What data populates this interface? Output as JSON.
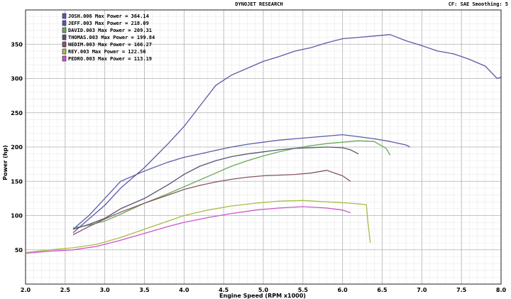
{
  "header": {
    "title": "DYNOJET RESEARCH",
    "settings": "CF: SAE  Smoothing: 5"
  },
  "chart_data": {
    "type": "line",
    "xlabel": "Engine Speed (RPM x1000)",
    "ylabel": "Power (hp)",
    "xlim": [
      2.0,
      8.0
    ],
    "ylim": [
      0,
      400
    ],
    "xticks": [
      "2.0",
      "2.5",
      "3.0",
      "3.5",
      "4.0",
      "4.5",
      "5.0",
      "5.5",
      "6.0",
      "6.5",
      "7.0",
      "7.5",
      "8.0"
    ],
    "yticks": [
      "50",
      "100",
      "150",
      "200",
      "250",
      "300",
      "350"
    ],
    "grid": true,
    "legend_position": "top-left",
    "series": [
      {
        "name": "JOSH.006 Max Power = 364.14",
        "color": "#5a5aa8",
        "x": [
          2.6,
          2.8,
          3.0,
          3.2,
          3.5,
          3.8,
          4.0,
          4.2,
          4.4,
          4.6,
          4.8,
          5.0,
          5.2,
          5.4,
          5.6,
          5.8,
          6.0,
          6.2,
          6.4,
          6.6,
          6.8,
          7.0,
          7.2,
          7.4,
          7.6,
          7.8,
          7.95,
          8.0
        ],
        "y": [
          75,
          95,
          115,
          140,
          170,
          205,
          230,
          260,
          290,
          305,
          315,
          325,
          332,
          340,
          345,
          352,
          358,
          360,
          362,
          364,
          355,
          348,
          340,
          336,
          328,
          318,
          300,
          302
        ]
      },
      {
        "name": "JEFF.003 Max Power = 218.09",
        "color": "#5a5aa8",
        "x": [
          2.6,
          2.8,
          3.0,
          3.2,
          3.5,
          3.8,
          4.0,
          4.2,
          4.4,
          4.6,
          4.8,
          5.0,
          5.2,
          5.4,
          5.6,
          5.8,
          6.0,
          6.2,
          6.4,
          6.6,
          6.8,
          6.85
        ],
        "y": [
          80,
          100,
          125,
          150,
          165,
          178,
          185,
          190,
          195,
          200,
          204,
          207,
          210,
          212,
          214,
          216,
          218,
          215,
          212,
          208,
          203,
          200
        ]
      },
      {
        "name": "DAVID.003 Max Power = 209.31",
        "color": "#66aa55",
        "x": [
          2.6,
          2.8,
          3.0,
          3.2,
          3.5,
          3.8,
          4.0,
          4.2,
          4.4,
          4.6,
          4.8,
          5.0,
          5.2,
          5.4,
          5.6,
          5.8,
          6.0,
          6.2,
          6.4,
          6.55,
          6.6
        ],
        "y": [
          82,
          86,
          92,
          102,
          118,
          132,
          142,
          152,
          162,
          172,
          180,
          187,
          193,
          198,
          202,
          205,
          207,
          209,
          208,
          198,
          188
        ]
      },
      {
        "name": "THOMAS.003 Max Power = 199.84",
        "color": "#555577",
        "x": [
          2.6,
          2.8,
          3.0,
          3.2,
          3.5,
          3.8,
          4.0,
          4.2,
          4.4,
          4.6,
          4.8,
          5.0,
          5.2,
          5.4,
          5.6,
          5.8,
          6.0,
          6.1,
          6.2
        ],
        "y": [
          80,
          87,
          96,
          110,
          125,
          145,
          160,
          172,
          180,
          186,
          190,
          193,
          196,
          198,
          199,
          200,
          199,
          196,
          190
        ]
      },
      {
        "name": "NEDIM.003 Max Power = 166.27",
        "color": "#885566",
        "x": [
          2.6,
          2.8,
          3.0,
          3.2,
          3.5,
          3.8,
          4.0,
          4.2,
          4.4,
          4.6,
          4.8,
          5.0,
          5.2,
          5.4,
          5.6,
          5.8,
          5.9,
          6.0,
          6.1
        ],
        "y": [
          72,
          84,
          95,
          105,
          118,
          130,
          138,
          144,
          149,
          153,
          156,
          158,
          159,
          160,
          162,
          166,
          162,
          158,
          150
        ]
      },
      {
        "name": "REY.003 Max Power = 122.56",
        "color": "#aabb44",
        "x": [
          2.0,
          2.3,
          2.6,
          2.9,
          3.2,
          3.5,
          3.8,
          4.0,
          4.3,
          4.6,
          4.9,
          5.2,
          5.5,
          5.8,
          6.1,
          6.3,
          6.32,
          6.35
        ],
        "y": [
          46,
          50,
          53,
          58,
          68,
          80,
          92,
          100,
          108,
          114,
          118,
          121,
          122,
          120,
          118,
          116,
          90,
          60
        ]
      },
      {
        "name": "PEDRO.003 Max Power = 113.19",
        "color": "#cc55cc",
        "x": [
          2.0,
          2.3,
          2.6,
          2.9,
          3.2,
          3.5,
          3.8,
          4.0,
          4.3,
          4.6,
          4.9,
          5.2,
          5.5,
          5.8,
          6.0,
          6.1
        ],
        "y": [
          45,
          48,
          50,
          55,
          64,
          74,
          84,
          90,
          97,
          103,
          108,
          111,
          113,
          111,
          108,
          104
        ]
      }
    ]
  }
}
